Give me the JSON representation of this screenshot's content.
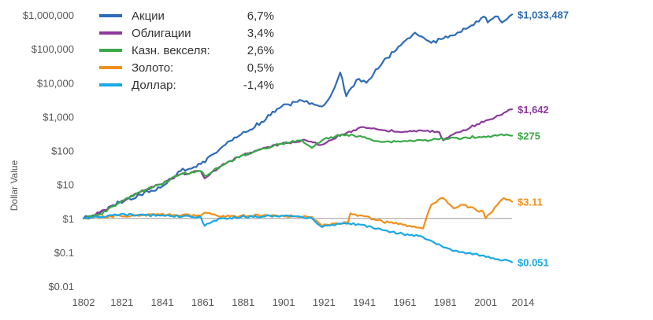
{
  "chart_data": {
    "type": "line",
    "title": "",
    "xlabel": "",
    "ylabel": "Dollar Value",
    "y_scale": "log",
    "ylim": [
      0.01,
      1000000
    ],
    "xlim": [
      1802,
      2014
    ],
    "grid": false,
    "legend_position": "top-left",
    "baseline": 1,
    "x_ticks": [
      "1802",
      "1821",
      "1841",
      "1861",
      "1881",
      "1901",
      "1921",
      "1941",
      "1961",
      "1981",
      "2001",
      "2014"
    ],
    "x_tick_values": [
      1802,
      1821,
      1841,
      1861,
      1881,
      1901,
      1921,
      1941,
      1961,
      1981,
      2001,
      2014
    ],
    "y_ticks": [
      "$0.01",
      "$0.1",
      "$1",
      "$10",
      "$100",
      "$1,000",
      "$10,000",
      "$100,000",
      "$1,000,000"
    ],
    "y_tick_values": [
      0.01,
      0.1,
      1,
      10,
      100,
      1000,
      10000,
      100000,
      1000000
    ],
    "series": [
      {
        "name": "Акции",
        "legend_value": "6,7%",
        "end_label": "$1,033,487",
        "color": "#2e6bb8",
        "x": [
          1802,
          1810,
          1820,
          1830,
          1840,
          1850,
          1860,
          1870,
          1880,
          1890,
          1900,
          1910,
          1915,
          1920,
          1925,
          1929,
          1932,
          1937,
          1942,
          1950,
          1960,
          1966,
          1974,
          1980,
          1987,
          1990,
          1995,
          2000,
          2002,
          2007,
          2009,
          2014
        ],
        "values": [
          1,
          1.4,
          3,
          5,
          8,
          25,
          40,
          120,
          300,
          700,
          2000,
          3000,
          2500,
          2000,
          5000,
          20000,
          4000,
          12000,
          10000,
          40000,
          150000,
          300000,
          150000,
          200000,
          300000,
          400000,
          500000,
          900000,
          600000,
          900000,
          600000,
          1033487
        ]
      },
      {
        "name": "Облигации",
        "legend_value": "3,4%",
        "end_label": "$1,642",
        "color": "#8e3a9d",
        "x": [
          1802,
          1810,
          1820,
          1830,
          1840,
          1850,
          1860,
          1862,
          1870,
          1880,
          1890,
          1900,
          1910,
          1920,
          1930,
          1940,
          1950,
          1960,
          1970,
          1978,
          1980,
          1985,
          1990,
          2000,
          2010,
          2014
        ],
        "values": [
          1,
          1.5,
          3,
          6,
          10,
          20,
          25,
          15,
          35,
          70,
          110,
          160,
          200,
          150,
          300,
          500,
          400,
          350,
          380,
          350,
          200,
          300,
          400,
          700,
          1300,
          1642
        ]
      },
      {
        "name": "Казн. векселя:",
        "legend_value": "2,6%",
        "end_label": "$275",
        "color": "#3aa846",
        "x": [
          1802,
          1810,
          1820,
          1830,
          1840,
          1850,
          1860,
          1862,
          1870,
          1880,
          1890,
          1900,
          1910,
          1915,
          1920,
          1930,
          1940,
          1950,
          1960,
          1970,
          1980,
          1990,
          2000,
          2010,
          2014
        ],
        "values": [
          1,
          1.3,
          3,
          6,
          10,
          20,
          25,
          18,
          35,
          70,
          110,
          160,
          200,
          120,
          200,
          300,
          250,
          180,
          190,
          200,
          220,
          240,
          260,
          280,
          275
        ]
      },
      {
        "name": "Золото:",
        "legend_value": "0,5%",
        "end_label": "$3.11",
        "color": "#f0901c",
        "x": [
          1802,
          1820,
          1840,
          1860,
          1862,
          1870,
          1880,
          1900,
          1915,
          1920,
          1925,
          1930,
          1933,
          1934,
          1940,
          1950,
          1960,
          1970,
          1974,
          1980,
          1985,
          1990,
          2000,
          2001,
          2010,
          2014
        ],
        "values": [
          1,
          1.2,
          1.3,
          1.2,
          1.5,
          1.1,
          1.2,
          1.2,
          1.1,
          0.6,
          0.7,
          0.7,
          0.8,
          1.4,
          1.2,
          0.8,
          0.65,
          0.5,
          2.5,
          4,
          2,
          2.5,
          1.5,
          1,
          4,
          3.11
        ]
      },
      {
        "name": "Доллар:",
        "legend_value": "-1,4%",
        "end_label": "$0.051",
        "color": "#1aa8e6",
        "x": [
          1802,
          1820,
          1840,
          1860,
          1862,
          1870,
          1880,
          1900,
          1915,
          1920,
          1925,
          1930,
          1940,
          1950,
          1960,
          1970,
          1980,
          1990,
          2000,
          2014
        ],
        "values": [
          1,
          1.3,
          1.2,
          1.1,
          0.6,
          1.0,
          1.1,
          1.2,
          1.0,
          0.55,
          0.65,
          0.7,
          0.65,
          0.45,
          0.35,
          0.28,
          0.14,
          0.1,
          0.08,
          0.051
        ]
      }
    ]
  }
}
